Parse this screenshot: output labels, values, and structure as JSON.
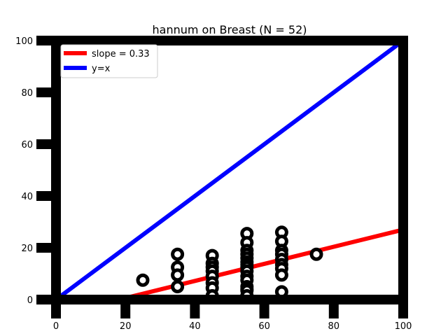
{
  "chart_data": {
    "type": "scatter",
    "title": "hannum on Breast (N = 52)",
    "xlabel": "",
    "ylabel": "",
    "xlim": [
      0,
      100
    ],
    "ylim": [
      0,
      100
    ],
    "x_ticks": [
      "0",
      "20",
      "40",
      "60",
      "80",
      "100"
    ],
    "y_ticks": [
      "0",
      "20",
      "40",
      "60",
      "80",
      "100"
    ],
    "grid": false,
    "legend_position": "top-left",
    "points": {
      "name": "",
      "color": "#000000",
      "marker": "hollow-circle",
      "x": [
        25,
        35,
        35,
        35,
        35,
        45,
        45,
        45,
        45,
        45,
        45,
        45,
        45,
        55,
        55,
        55,
        55,
        55,
        55,
        55,
        55,
        55,
        55,
        55,
        55,
        55,
        55,
        55,
        65,
        65,
        65,
        65,
        65,
        65,
        65,
        65,
        65,
        75
      ],
      "y": [
        7.5,
        17.5,
        12.5,
        9.5,
        5,
        17,
        14,
        12.5,
        11,
        9,
        6.5,
        4.5,
        1.5,
        25.5,
        22,
        19,
        17.5,
        16,
        14.5,
        13.5,
        12.5,
        11,
        9,
        7.5,
        5,
        4,
        3.5,
        1.5,
        26,
        22.5,
        19,
        17.5,
        15.5,
        13.5,
        12,
        9.5,
        3,
        17.5
      ]
    },
    "lines": [
      {
        "name": "slope = 0.33",
        "color": "#ff0000",
        "slope": 0.33,
        "intercept": -6
      },
      {
        "name": "y=x",
        "color": "#0000ff",
        "slope": 1,
        "intercept": 0
      }
    ]
  }
}
